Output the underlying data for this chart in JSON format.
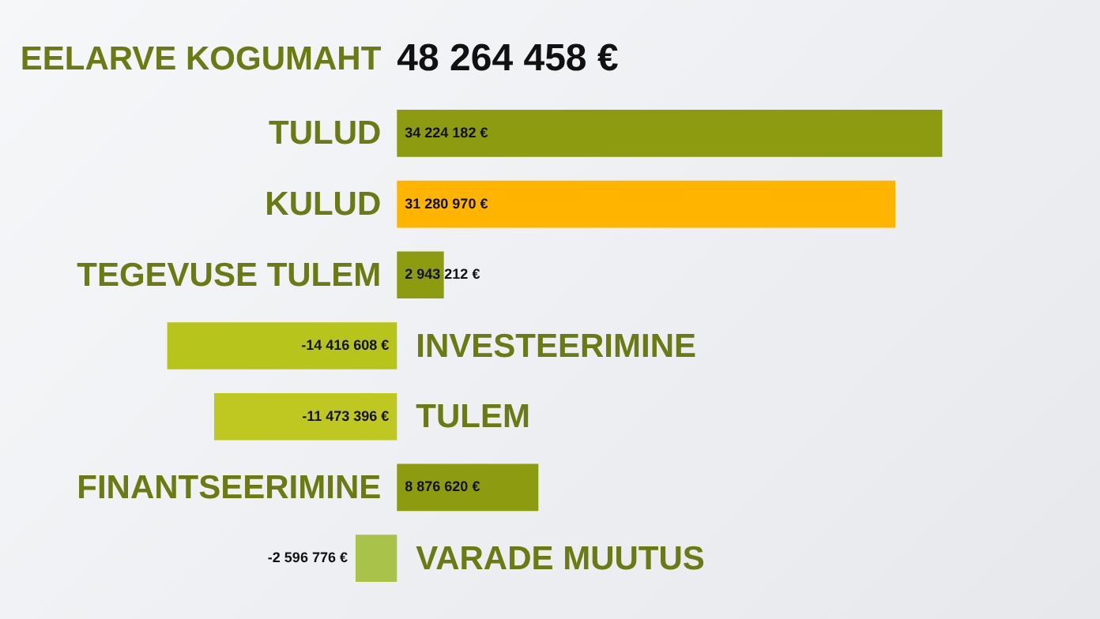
{
  "chart_data": {
    "type": "bar",
    "orientation": "horizontal",
    "title": "EELARVE KOGUMAHT",
    "subtitle": "48 264 458 €",
    "categories": [
      "TULUD",
      "KULUD",
      "TEGEVUSE TULEM",
      "INVESTEERIMINE",
      "TULEM",
      "FINANTSEERIMINE",
      "VARADE MUUTUS"
    ],
    "values": [
      34224182,
      31280970,
      2943212,
      -14416608,
      -11473396,
      8876620,
      -2596776
    ],
    "colors": [
      "#8c9b0f",
      "#ffb400",
      "#8c9b0f",
      "#b6c41c",
      "#bfc820",
      "#8c9b0f",
      "#a8c24a"
    ],
    "value_labels": [
      "34 224 182 €",
      "31 280 970 €",
      "2 943 212 €",
      "-14 416 608 €",
      "-11 473 396 €",
      "8 876 620 €",
      "-2 596 776 €"
    ]
  }
}
